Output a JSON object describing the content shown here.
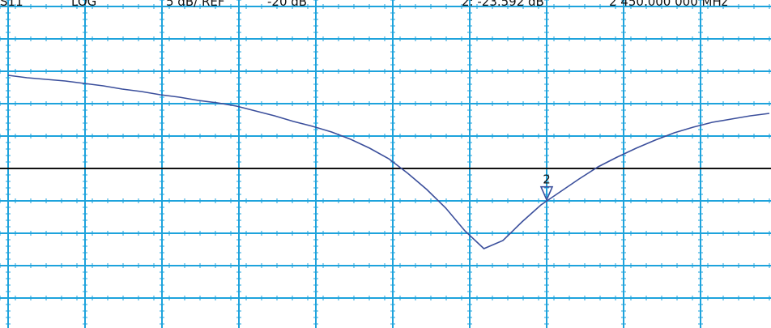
{
  "chart_data": {
    "type": "line",
    "header": {
      "param": "S11",
      "format": "LOG"
    },
    "scale": {
      "value": 5,
      "label": "5 dB/ REF"
    },
    "reference": {
      "value": -20,
      "label": "-20 dB"
    },
    "marker": {
      "name": "2",
      "value": -23.592,
      "label": "2: -23.592 dB",
      "frequency": "2 450.000 000 MHz"
    },
    "values": [
      -5.63,
      -6.0,
      -6.25,
      -6.5,
      -6.88,
      -7.25,
      -7.75,
      -8.13,
      -8.63,
      -9.0,
      -9.5,
      -9.88,
      -10.38,
      -11.13,
      -11.88,
      -12.75,
      -13.5,
      -14.38,
      -15.5,
      -16.88,
      -18.5,
      -20.75,
      -23.25,
      -26.13,
      -29.63,
      -32.38,
      -31.13,
      -28.25,
      -25.63,
      -23.63,
      -21.63,
      -19.75,
      -18.25,
      -16.88,
      -15.63,
      -14.5,
      -13.63,
      -12.88,
      -12.38,
      -11.88,
      -11.5
    ],
    "color": "#3b4f9c",
    "grid_color": "#1ea3dc",
    "ylim": [
      -45,
      5
    ],
    "grid": true
  }
}
